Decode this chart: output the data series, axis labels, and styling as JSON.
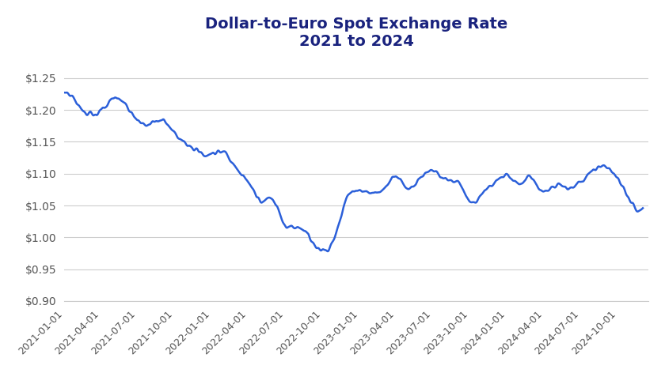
{
  "title_line1": "Dollar-to-Euro Spot Exchange Rate",
  "title_line2": "2021 to 2024",
  "title_color": "#1a237e",
  "line_color": "#2b5fd9",
  "line_width": 1.8,
  "background_color": "#ffffff",
  "grid_color": "#cccccc",
  "ylim": [
    0.9,
    1.28
  ],
  "yticks": [
    0.9,
    0.95,
    1.0,
    1.05,
    1.1,
    1.15,
    1.2,
    1.25
  ],
  "ytick_labels": [
    "$0.90",
    "$0.95",
    "$1.00",
    "$1.05",
    "$1.10",
    "$1.15",
    "$1.20",
    "$1.25"
  ],
  "xtick_labels": [
    "2021-01-01",
    "2021-04-01",
    "2021-07-01",
    "2021-10-01",
    "2022-01-01",
    "2022-04-01",
    "2022-07-01",
    "2022-10-01",
    "2023-01-01",
    "2023-04-01",
    "2023-07-01",
    "2023-10-01",
    "2024-01-01",
    "2024-04-01",
    "2024-07-01",
    "2024-10-01"
  ]
}
